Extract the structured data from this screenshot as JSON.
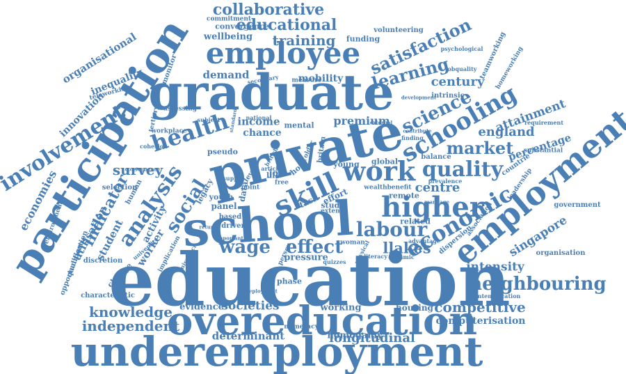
{
  "style": {
    "word_color": "#4a7fb5",
    "background": "#ffffff"
  },
  "words": [
    "education",
    "overeducation",
    "underemployment",
    "graduate",
    "private",
    "school",
    "participation",
    "employment",
    "higher",
    "employee",
    "skill",
    "work",
    "schooling",
    "economic",
    "involvement",
    "analysis",
    "health",
    "social",
    "quality",
    "labour",
    "neighbouring",
    "wage",
    "effect",
    "science",
    "market",
    "collaborative",
    "educational",
    "satisfaction",
    "learning",
    "training",
    "knowledge",
    "independent",
    "competitive",
    "computerisation",
    "indicator",
    "survey",
    "centre",
    "england",
    "century",
    "attainment",
    "percentage",
    "intensity",
    "singapore",
    "longitudinal",
    "determinant",
    "homogamy",
    "societies",
    "evidence",
    "working",
    "housing",
    "economies",
    "utilisation",
    "student",
    "worker",
    "premium",
    "income",
    "chance",
    "mobility",
    "demand",
    "wellbeing",
    "organisational",
    "inequality",
    "innovation",
    "teleworking",
    "tertiary",
    "youth",
    "panel",
    "pressure",
    "phase",
    "llakes",
    "related",
    "government",
    "organisation",
    "leadership",
    "countrie",
    "balance",
    "global",
    "young",
    "dispersion",
    "association",
    "opportunities",
    "qualification",
    "discretion",
    "selection",
    "funding",
    "volunteering",
    "commitment",
    "convergence",
    "monitor",
    "teamworking",
    "homeworking",
    "jobquality",
    "psychological",
    "requirement",
    "substantial",
    "intensification",
    "numeracy",
    "woman",
    "intrinsic",
    "activity",
    "implication",
    "characteristic",
    "change",
    "environment",
    "human",
    "workplace",
    "assessing",
    "measure",
    "secondary",
    "based",
    "driven",
    "task",
    "effort",
    "study",
    "data",
    "life",
    "job",
    "hour",
    "literacy",
    "dynamic",
    "advantage",
    "marriage",
    "prevalence",
    "wealth",
    "benefit",
    "remote",
    "extent",
    "point",
    "cohesion",
    "university",
    "mismatch",
    "mental",
    "article",
    "british",
    "britain",
    "pseudo",
    "legacy",
    "development",
    "finding",
    "external",
    "free",
    "older",
    "level",
    "supply",
    "consequence",
    "quizzes",
    "person",
    "physical",
    "deployment",
    "standard",
    "return",
    "important",
    "subject",
    "national",
    "contribute"
  ]
}
